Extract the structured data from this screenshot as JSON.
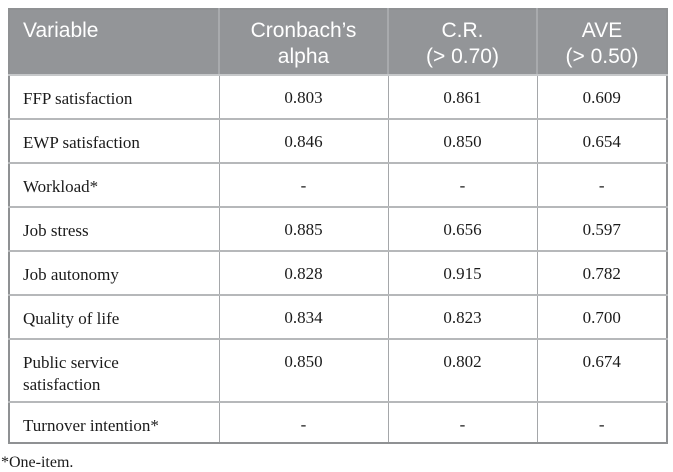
{
  "colors": {
    "header_bg": "#939598",
    "header_text": "#ffffff",
    "header_divider": "#a8aaad",
    "grid_h": "#b6b8ba",
    "grid_v": "#a5a7aa",
    "outer_border": "#8f9193",
    "body_text": "#1b1b1b",
    "page_bg": "#ffffff"
  },
  "table": {
    "columns": [
      {
        "id": "variable",
        "line1": "Variable",
        "line2": ""
      },
      {
        "id": "cronbachs-alpha",
        "line1": "Cronbach’s",
        "line2": "alpha"
      },
      {
        "id": "cr",
        "line1": "C.R.",
        "line2": "(> 0.70)"
      },
      {
        "id": "ave",
        "line1": "AVE",
        "line2": "(> 0.50)"
      }
    ],
    "rows": [
      {
        "variable": "FFP satisfaction",
        "cronbachs_alpha": "0.803",
        "cr": "0.861",
        "ave": "0.609"
      },
      {
        "variable": "EWP satisfaction",
        "cronbachs_alpha": "0.846",
        "cr": "0.850",
        "ave": "0.654"
      },
      {
        "variable": "Workload*",
        "cronbachs_alpha": "-",
        "cr": "-",
        "ave": "-"
      },
      {
        "variable": "Job stress",
        "cronbachs_alpha": "0.885",
        "cr": "0.656",
        "ave": "0.597"
      },
      {
        "variable": "Job autonomy",
        "cronbachs_alpha": "0.828",
        "cr": "0.915",
        "ave": "0.782"
      },
      {
        "variable": "Quality of life",
        "cronbachs_alpha": "0.834",
        "cr": "0.823",
        "ave": "0.700"
      },
      {
        "variable": "Public service satisfaction",
        "cronbachs_alpha": "0.850",
        "cr": "0.802",
        "ave": "0.674"
      },
      {
        "variable": "Turnover intention*",
        "cronbachs_alpha": "-",
        "cr": "-",
        "ave": "-"
      }
    ],
    "footnote": "*One-item."
  }
}
